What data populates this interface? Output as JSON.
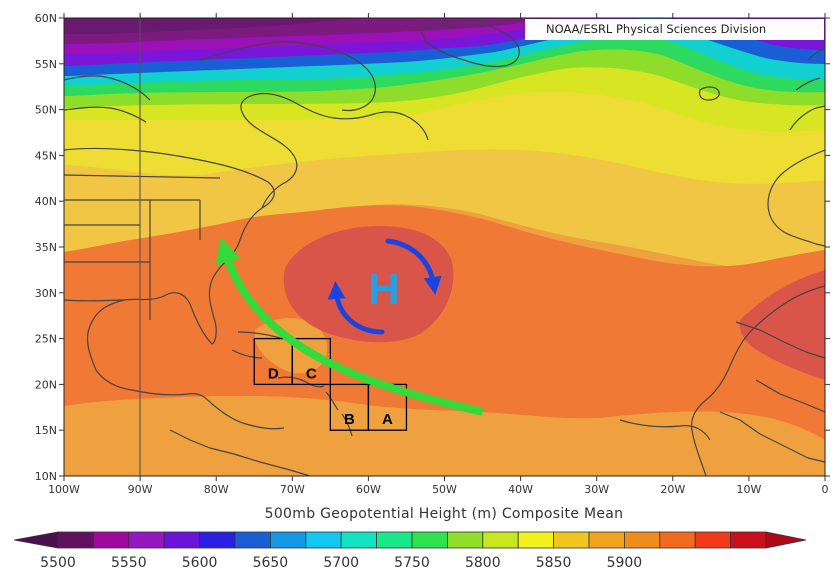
{
  "map": {
    "credit": "NOAA/ESRL Physical Sciences Division",
    "caption": "500mb Geopotential Height (m) Composite Mean",
    "lat_labels": [
      "60N",
      "55N",
      "50N",
      "45N",
      "40N",
      "35N",
      "30N",
      "25N",
      "20N",
      "15N",
      "10N"
    ],
    "lon_labels": [
      "100W",
      "90W",
      "80W",
      "70W",
      "60W",
      "50W",
      "40W",
      "30W",
      "20W",
      "10W",
      "0"
    ],
    "lat_range": [
      10,
      60
    ],
    "lon_range": [
      -100,
      0
    ],
    "high_label": "H",
    "boxes": [
      {
        "label": "A",
        "lon": [
          -60,
          -55
        ],
        "lat": [
          15,
          20
        ]
      },
      {
        "label": "B",
        "lon": [
          -65,
          -60
        ],
        "lat": [
          15,
          20
        ]
      },
      {
        "label": "C",
        "lon": [
          -70,
          -65
        ],
        "lat": [
          20,
          25
        ]
      },
      {
        "label": "D",
        "lon": [
          -75,
          -70
        ],
        "lat": [
          20,
          25
        ]
      }
    ],
    "track_arrow": {
      "from": {
        "lon": -45,
        "lat": 17
      },
      "to": {
        "lon": -79,
        "lat": 35
      },
      "color": "#34d93a"
    },
    "circulation_color": "#1a44e0"
  },
  "colorbar": {
    "labels": [
      "5500",
      "5550",
      "5600",
      "5650",
      "5700",
      "5750",
      "5800",
      "5850",
      "5900"
    ],
    "colors": [
      "#60125f",
      "#a00a9c",
      "#9616c2",
      "#6b13d9",
      "#2a1ee3",
      "#1a5ed6",
      "#1397e6",
      "#12c7f0",
      "#12e3c3",
      "#19e88a",
      "#2ee34f",
      "#8fe02a",
      "#c9e71e",
      "#f2f21e",
      "#f2c61e",
      "#f1a41f",
      "#f08c1d",
      "#f26a1d",
      "#f23a1a",
      "#c9101a"
    ]
  }
}
